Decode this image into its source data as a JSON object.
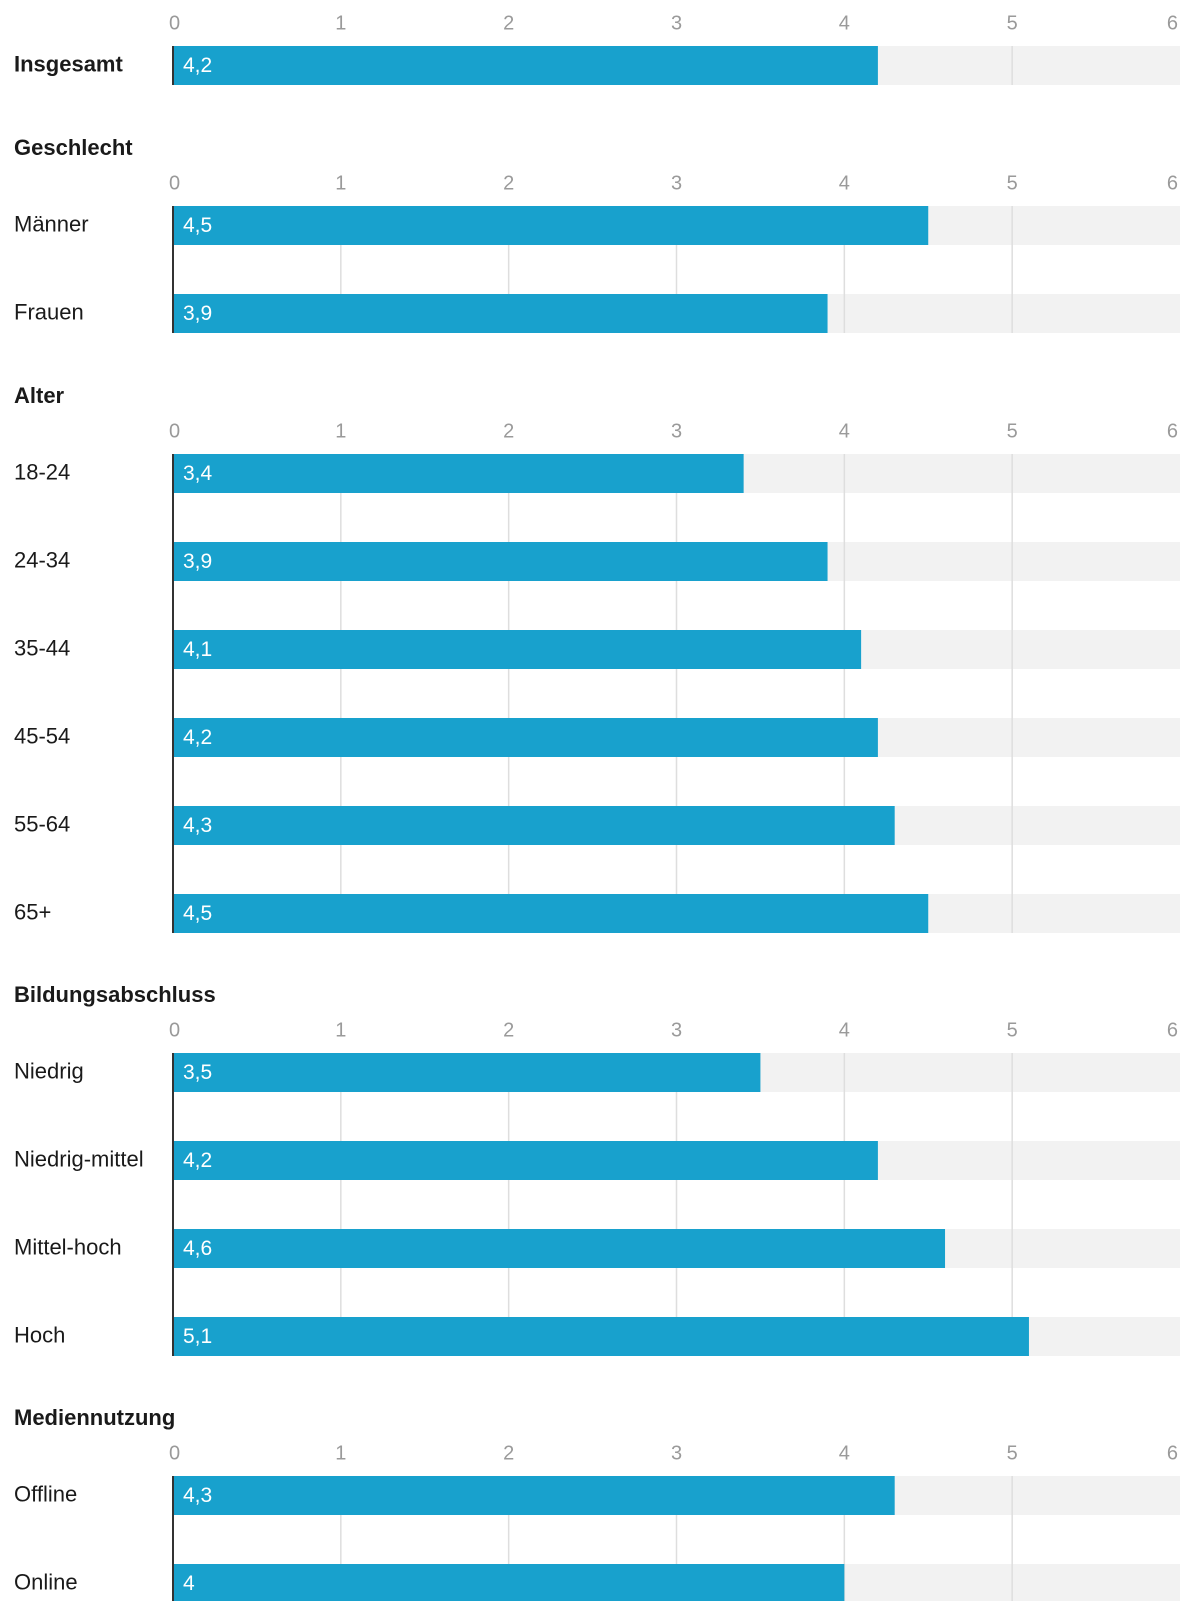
{
  "chart_data": {
    "type": "bar",
    "orientation": "horizontal",
    "xlim": [
      0,
      6
    ],
    "ticks": [
      "0",
      "1",
      "2",
      "3",
      "4",
      "5",
      "6"
    ],
    "grid": true,
    "bar_color": "#18a1cd",
    "track_color": "#f2f2f2",
    "groups": [
      {
        "title": "",
        "bold_label": true,
        "bars": [
          {
            "label": "Insgesamt",
            "value": 4.2,
            "display": "4,2"
          }
        ]
      },
      {
        "title": "Geschlecht",
        "bars": [
          {
            "label": "Männer",
            "value": 4.5,
            "display": "4,5"
          },
          {
            "label": "Frauen",
            "value": 3.9,
            "display": "3,9"
          }
        ]
      },
      {
        "title": "Alter",
        "bars": [
          {
            "label": "18-24",
            "value": 3.4,
            "display": "3,4"
          },
          {
            "label": "24-34",
            "value": 3.9,
            "display": "3,9"
          },
          {
            "label": "35-44",
            "value": 4.1,
            "display": "4,1"
          },
          {
            "label": "45-54",
            "value": 4.2,
            "display": "4,2"
          },
          {
            "label": "55-64",
            "value": 4.3,
            "display": "4,3"
          },
          {
            "label": "65+",
            "value": 4.5,
            "display": "4,5"
          }
        ]
      },
      {
        "title": "Bildungsabschluss",
        "bars": [
          {
            "label": "Niedrig",
            "value": 3.5,
            "display": "3,5"
          },
          {
            "label": "Niedrig-mittel",
            "value": 4.2,
            "display": "4,2"
          },
          {
            "label": "Mittel-hoch",
            "value": 4.6,
            "display": "4,6"
          },
          {
            "label": "Hoch",
            "value": 5.1,
            "display": "5,1"
          }
        ]
      },
      {
        "title": "Mediennutzung",
        "bars": [
          {
            "label": "Offline",
            "value": 4.3,
            "display": "4,3"
          },
          {
            "label": "Online",
            "value": 4,
            "display": "4"
          }
        ]
      }
    ]
  }
}
